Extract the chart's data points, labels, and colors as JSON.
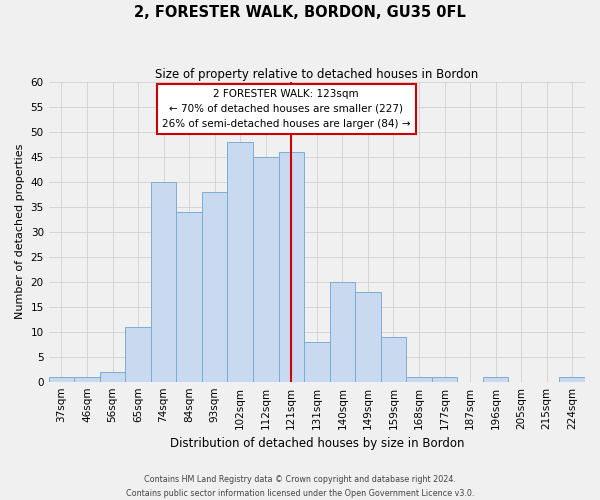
{
  "title": "2, FORESTER WALK, BORDON, GU35 0FL",
  "subtitle": "Size of property relative to detached houses in Bordon",
  "xlabel": "Distribution of detached houses by size in Bordon",
  "ylabel": "Number of detached properties",
  "bin_labels": [
    "37sqm",
    "46sqm",
    "56sqm",
    "65sqm",
    "74sqm",
    "84sqm",
    "93sqm",
    "102sqm",
    "112sqm",
    "121sqm",
    "131sqm",
    "140sqm",
    "149sqm",
    "159sqm",
    "168sqm",
    "177sqm",
    "187sqm",
    "196sqm",
    "205sqm",
    "215sqm",
    "224sqm"
  ],
  "bar_values": [
    1,
    1,
    2,
    11,
    40,
    34,
    38,
    48,
    45,
    46,
    8,
    20,
    18,
    9,
    1,
    1,
    0,
    1,
    0,
    0,
    1
  ],
  "bar_color": "#c9d9f0",
  "bar_edge_color": "#7badd4",
  "property_label": "2 FORESTER WALK: 123sqm",
  "annotation_line1": "← 70% of detached houses are smaller (227)",
  "annotation_line2": "26% of semi-detached houses are larger (84) →",
  "vline_color": "#cc0000",
  "vline_x_bin_index": 9.5,
  "annotation_box_color": "#cc0000",
  "ylim": [
    0,
    60
  ],
  "yticks": [
    0,
    5,
    10,
    15,
    20,
    25,
    30,
    35,
    40,
    45,
    50,
    55,
    60
  ],
  "footer_line1": "Contains HM Land Registry data © Crown copyright and database right 2024.",
  "footer_line2": "Contains public sector information licensed under the Open Government Licence v3.0.",
  "grid_color": "#d0d0d0",
  "background_color": "#f0f0f0",
  "title_fontsize": 10.5,
  "subtitle_fontsize": 8.5,
  "xlabel_fontsize": 8.5,
  "ylabel_fontsize": 8,
  "tick_fontsize": 7.5,
  "annotation_fontsize": 7.5,
  "footer_fontsize": 5.8
}
